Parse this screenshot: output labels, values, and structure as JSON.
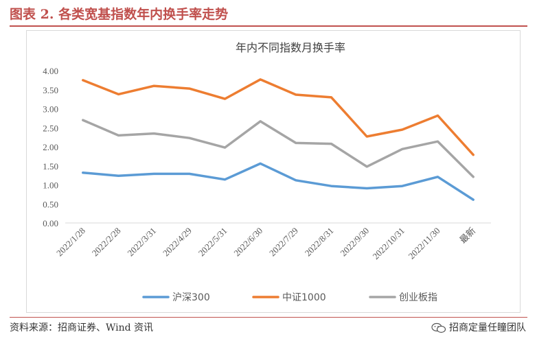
{
  "figure": {
    "label": "图表 2. 各类宽基指数年内换手率走势",
    "source": "资料来源：招商证券、Wind 资讯",
    "watermark": "招商定量任瞳团队",
    "watermark_icon": "wechat-icon"
  },
  "colors": {
    "header": "#c0504d",
    "series": [
      "#5b9bd5",
      "#ed7d31",
      "#a5a5a5"
    ],
    "axis_text": "#595959"
  },
  "chart_data": {
    "type": "line",
    "title": "年内不同指数月换手率",
    "xlabel": "",
    "ylabel": "",
    "ylim": [
      0,
      4
    ],
    "yticks": [
      "0.00",
      "0.50",
      "1.00",
      "1.50",
      "2.00",
      "2.50",
      "3.00",
      "3.50",
      "4.00"
    ],
    "grid": false,
    "legend_position": "bottom",
    "categories": [
      "2022/1/28",
      "2022/2/28",
      "2022/3/31",
      "2022/4/29",
      "2022/5/31",
      "2022/6/30",
      "2022/7/29",
      "2022/8/31",
      "2022/9/30",
      "2022/10/31",
      "2022/11/30",
      "最新"
    ],
    "series": [
      {
        "name": "沪深300",
        "values": [
          1.32,
          1.24,
          1.29,
          1.29,
          1.14,
          1.56,
          1.12,
          0.97,
          0.91,
          0.97,
          1.21,
          0.61
        ]
      },
      {
        "name": "中证1000",
        "values": [
          3.75,
          3.38,
          3.6,
          3.53,
          3.26,
          3.77,
          3.37,
          3.3,
          2.27,
          2.45,
          2.82,
          1.79
        ]
      },
      {
        "name": "创业板指",
        "values": [
          2.7,
          2.3,
          2.35,
          2.23,
          1.98,
          2.67,
          2.1,
          2.08,
          1.48,
          1.94,
          2.14,
          1.21
        ]
      }
    ]
  }
}
